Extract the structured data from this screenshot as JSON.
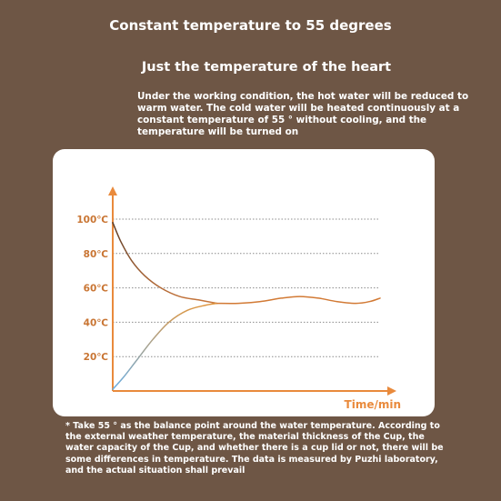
{
  "header": {
    "title": "Constant temperature to 55 degrees",
    "subtitle": "Just the temperature of the heart",
    "description": "Under the working condition, the hot water will be reduced to warm water. The cold water will be heated continuously at a constant temperature of 55 ° without cooling, and the temperature will be turned on"
  },
  "footnote": "* Take 55 ° as the balance point around the water temperature. According to the external weather temperature, the material thickness of the Cup, the water capacity of the Cup, and whether there is a cup lid or not, there will be some differences in temperature. The data is measured by Puzhi laboratory, and the actual situation shall prevail",
  "chart_data": {
    "type": "line",
    "xlabel": "Time/min",
    "ylabel": "",
    "y_ticks": [
      {
        "value": 100,
        "label": "100℃"
      },
      {
        "value": 80,
        "label": "80℃"
      },
      {
        "value": 60,
        "label": "60℃"
      },
      {
        "value": 40,
        "label": "40℃"
      },
      {
        "value": 20,
        "label": "20℃"
      }
    ],
    "ylim": [
      0,
      100
    ],
    "xlim": [
      0,
      10
    ],
    "grid": true,
    "colors": {
      "axis": "#e98a3c",
      "label": "#c97533",
      "grid": "#8c8c8c",
      "hot_top": "#5a3b27",
      "hot_bottom": "#c8763c",
      "cold_bottom": "#6aaee3",
      "cold_top": "#e0963f",
      "steady": "#d27a35"
    },
    "series": [
      {
        "key": "hot",
        "x": [
          0,
          0.3,
          0.7,
          1.2,
          1.8,
          2.5,
          3.2,
          3.9
        ],
        "y": [
          98,
          87,
          76,
          67,
          60,
          55,
          53,
          51
        ]
      },
      {
        "key": "cold",
        "x": [
          0,
          0.4,
          0.9,
          1.5,
          2.1,
          2.8,
          3.5,
          3.9
        ],
        "y": [
          1,
          8,
          18,
          30,
          40,
          47,
          50,
          51
        ]
      },
      {
        "key": "steady",
        "x": [
          3.9,
          4.7,
          5.5,
          6.3,
          7.0,
          7.7,
          8.4,
          9.1,
          9.6,
          10
        ],
        "y": [
          51,
          51,
          52,
          54,
          55,
          54,
          52,
          51,
          52,
          54
        ]
      }
    ]
  }
}
